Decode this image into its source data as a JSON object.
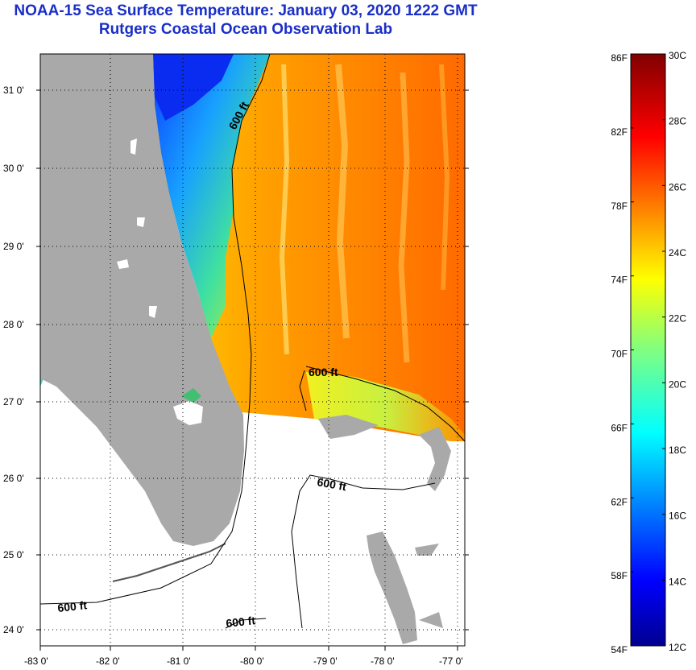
{
  "title": {
    "line1": "NOAA-15 Sea Surface Temperature:  January 03, 2020 1222 GMT",
    "line2": "Rutgers Coastal Ocean Observation Lab"
  },
  "map": {
    "lat_labels": [
      "31 0'",
      "30 0'",
      "29 0'",
      "28 0'",
      "27 0'",
      "26 0'",
      "25 0'",
      "24 0'"
    ],
    "lon_labels": [
      "-83 0'",
      "-82 0'",
      "-81 0'",
      "-80 0'",
      "-79 0'",
      "-78 0'",
      "-77 0'"
    ],
    "contour_labels": [
      "600 ft",
      "600 ft",
      "600 ft",
      "600 ft",
      "600 ft"
    ],
    "colors": {
      "land": "#a9a9a9",
      "cloud": "#ffffff",
      "warm": "#ff7f00",
      "cool": "#0040ff"
    }
  },
  "colorbar": {
    "fahrenheit": [
      "86F",
      "82F",
      "78F",
      "74F",
      "70F",
      "66F",
      "62F",
      "58F",
      "54F"
    ],
    "celsius": [
      "30C",
      "28C",
      "26C",
      "24C",
      "22C",
      "20C",
      "18C",
      "16C",
      "14C",
      "12C"
    ]
  }
}
